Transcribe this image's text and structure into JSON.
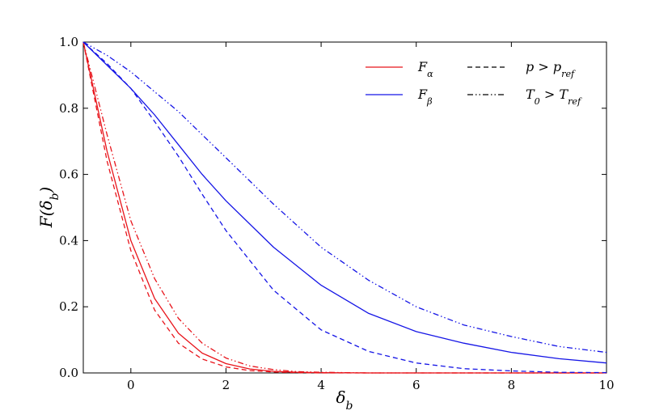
{
  "chart_data": {
    "type": "line",
    "title": "",
    "xlabel": "δ_b",
    "ylabel": "F(δ_b)",
    "xlim": [
      -1,
      10
    ],
    "ylim": [
      0,
      1.0
    ],
    "xticks": [
      0,
      2,
      4,
      6,
      8,
      10
    ],
    "xtick_labels": [
      "0",
      "2",
      "4",
      "6",
      "8",
      "10"
    ],
    "yticks": [
      0.0,
      0.2,
      0.4,
      0.6,
      0.8,
      1.0
    ],
    "ytick_labels": [
      "0.0",
      "0.2",
      "0.4",
      "0.6",
      "0.8",
      "1.0"
    ],
    "grid": false,
    "legend_placement": "top-right",
    "legend": [
      {
        "label": "F_α",
        "kind": "color",
        "color": "#e8141b"
      },
      {
        "label": "F_β",
        "kind": "color",
        "color": "#1515e6"
      },
      {
        "label": "p > p_ref",
        "kind": "style",
        "style": "dashed"
      },
      {
        "label": "T_0 > T_ref",
        "kind": "style",
        "style": "dashdotdot"
      }
    ],
    "series": [
      {
        "color": "#e8141b",
        "style": "solid",
        "x": [
          -1,
          -0.5,
          0,
          0.5,
          1,
          1.5,
          2,
          2.5,
          3,
          3.5,
          4,
          5,
          6,
          8,
          10
        ],
        "y": [
          1.0,
          0.67,
          0.4,
          0.225,
          0.12,
          0.06,
          0.028,
          0.012,
          0.005,
          0.002,
          0.001,
          0.0,
          0.0,
          0.0,
          0.0
        ]
      },
      {
        "color": "#e8141b",
        "style": "dashed",
        "x": [
          -1,
          -0.5,
          0,
          0.5,
          1,
          1.5,
          2,
          2.5,
          3,
          3.5,
          4,
          5,
          6,
          8,
          10
        ],
        "y": [
          1.0,
          0.64,
          0.37,
          0.19,
          0.09,
          0.042,
          0.018,
          0.007,
          0.003,
          0.001,
          0.0,
          0.0,
          0.0,
          0.0,
          0.0
        ]
      },
      {
        "color": "#e8141b",
        "style": "dashdotdot",
        "x": [
          -1,
          -0.5,
          0,
          0.5,
          1,
          1.5,
          2,
          2.5,
          3,
          3.5,
          4,
          5,
          6,
          8,
          10
        ],
        "y": [
          1.0,
          0.72,
          0.46,
          0.285,
          0.165,
          0.09,
          0.045,
          0.021,
          0.01,
          0.004,
          0.002,
          0.0,
          0.0,
          0.0,
          0.0
        ]
      },
      {
        "color": "#1515e6",
        "style": "solid",
        "x": [
          -1,
          -0.5,
          0,
          0.5,
          1,
          1.5,
          2,
          3,
          4,
          5,
          6,
          7,
          8,
          9,
          10
        ],
        "y": [
          1.0,
          0.93,
          0.86,
          0.78,
          0.69,
          0.6,
          0.52,
          0.38,
          0.265,
          0.18,
          0.125,
          0.09,
          0.062,
          0.043,
          0.03
        ]
      },
      {
        "color": "#1515e6",
        "style": "dashed",
        "x": [
          -1,
          -0.5,
          0,
          0.5,
          1,
          1.5,
          2,
          3,
          4,
          5,
          6,
          7,
          8,
          9,
          10
        ],
        "y": [
          1.0,
          0.935,
          0.86,
          0.76,
          0.655,
          0.54,
          0.43,
          0.25,
          0.13,
          0.065,
          0.03,
          0.013,
          0.006,
          0.002,
          0.001
        ]
      },
      {
        "color": "#1515e6",
        "style": "dashdotdot",
        "x": [
          -1,
          -0.5,
          0,
          0.5,
          1,
          1.5,
          2,
          3,
          4,
          5,
          6,
          7,
          8,
          9,
          10
        ],
        "y": [
          1.0,
          0.96,
          0.91,
          0.85,
          0.79,
          0.72,
          0.65,
          0.51,
          0.38,
          0.28,
          0.2,
          0.145,
          0.11,
          0.08,
          0.062
        ]
      }
    ]
  }
}
